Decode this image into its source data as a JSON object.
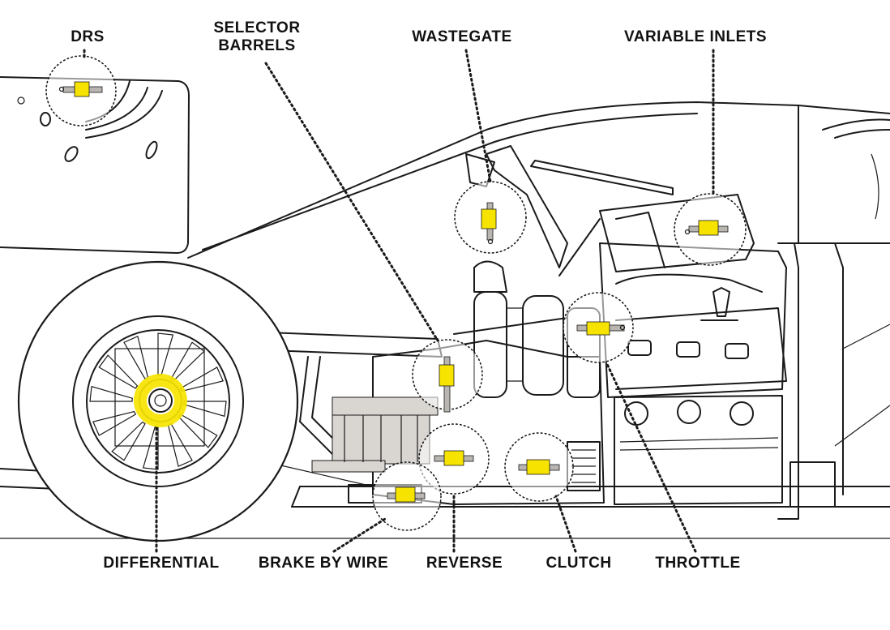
{
  "labels": {
    "drs": "DRS",
    "selector_barrels_line1": "SELECTOR",
    "selector_barrels_line2": "BARRELS",
    "wastegate": "WASTEGATE",
    "variable_inlets": "VARIABLE INLETS",
    "differential": "DIFFERENTIAL",
    "brake_by_wire": "BRAKE BY WIRE",
    "reverse": "REVERSE",
    "clutch": "CLUTCH",
    "throttle": "THROTTLE"
  },
  "colors": {
    "actuator_highlight": "#f6e400",
    "line_art": "#1a1a1a",
    "background": "#ffffff"
  }
}
